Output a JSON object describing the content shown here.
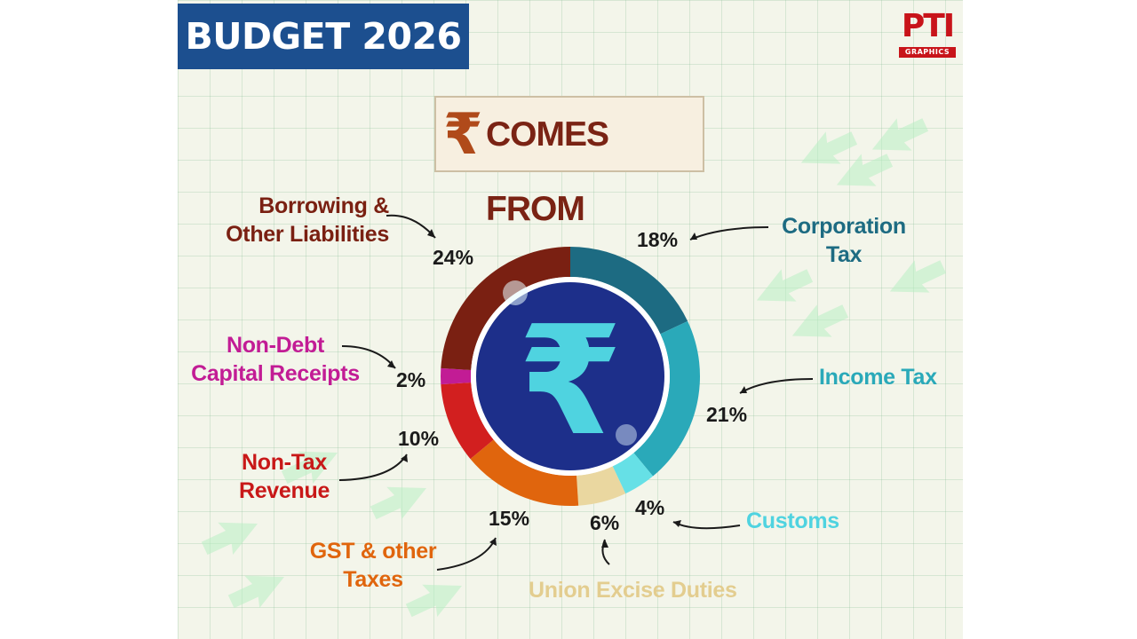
{
  "header": {
    "banner": "BUDGET 2026"
  },
  "logo": {
    "mark": "PTI",
    "sub": "GRAPHICS"
  },
  "title": {
    "symbol": "₹",
    "text": "COMES FROM"
  },
  "center_symbol": "₹",
  "colors": {
    "banner": "#1c4f8f",
    "center_disc": "#1d2f8a",
    "center_symbol": "#4fd3e0"
  },
  "chart_data": {
    "type": "pie",
    "variant": "donut",
    "title": "₹ COMES FROM",
    "series": [
      {
        "name": "Corporation Tax",
        "value": 18,
        "label": "18%",
        "color": "#1d6b82"
      },
      {
        "name": "Income Tax",
        "value": 21,
        "label": "21%",
        "color": "#2aa9b9"
      },
      {
        "name": "Customs",
        "value": 4,
        "label": "4%",
        "color": "#66e0e6"
      },
      {
        "name": "Union Excise Duties",
        "value": 6,
        "label": "6%",
        "color": "#ead7a0"
      },
      {
        "name": "GST & other Taxes",
        "value": 15,
        "label": "15%",
        "color": "#e0650d"
      },
      {
        "name": "Non-Tax Revenue",
        "value": 10,
        "label": "10%",
        "color": "#d21f1f"
      },
      {
        "name": "Non-Debt Capital Receipts",
        "value": 2,
        "label": "2%",
        "color": "#c21c95"
      },
      {
        "name": "Borrowing & Other Liabilities",
        "value": 24,
        "label": "24%",
        "color": "#7a2012"
      }
    ]
  },
  "labels": {
    "corporation_tax": [
      "Corporation",
      "Tax"
    ],
    "income_tax": [
      "Income Tax"
    ],
    "customs": [
      "Customs"
    ],
    "union_excise": [
      "Union Excise Duties"
    ],
    "gst": [
      "GST & other",
      "Taxes"
    ],
    "non_tax": [
      "Non-Tax",
      "Revenue"
    ],
    "non_debt": [
      "Non-Debt",
      "Capital Receipts"
    ],
    "borrowing": [
      "Borrowing &",
      "Other Liabilities"
    ]
  }
}
